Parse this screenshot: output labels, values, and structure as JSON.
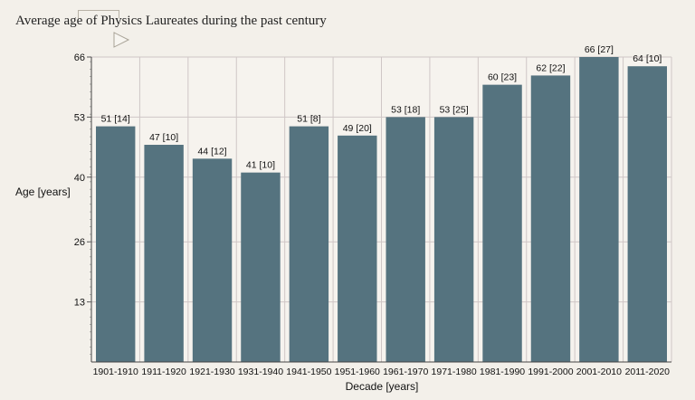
{
  "chart_data": {
    "type": "bar",
    "title": "Average age of Physics Laureates during the past century",
    "xlabel": "Decade [years]",
    "ylabel": "Age [years]",
    "ylim": [
      0,
      66
    ],
    "yticks": [
      "13",
      "26",
      "40",
      "53",
      "66"
    ],
    "grid": true,
    "bar_color": "#55737f",
    "categories": [
      "1901-1910",
      "1911-1920",
      "1921-1930",
      "1931-1940",
      "1941-1950",
      "1951-1960",
      "1961-1970",
      "1971-1980",
      "1981-1990",
      "1991-2000",
      "2001-2010",
      "2011-2020"
    ],
    "values": [
      51,
      47,
      44,
      41,
      51,
      49,
      53,
      53,
      60,
      62,
      66,
      64
    ],
    "data_labels": [
      "51 [14]",
      "47 [10]",
      "44 [12]",
      "41 [10]",
      "51 [8]",
      "49 [20]",
      "53 [18]",
      "53 [25]",
      "60 [23]",
      "62 [22]",
      "66 [27]",
      "64 [10]"
    ]
  }
}
